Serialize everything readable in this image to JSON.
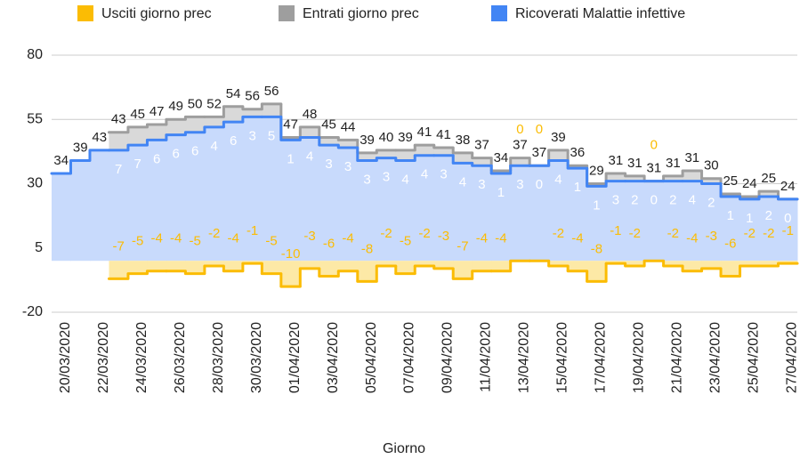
{
  "chart_data": {
    "type": "stepped-area",
    "x_label": "Giorno",
    "categories": [
      "20/03/2020",
      null,
      "22/03/2020",
      null,
      "24/03/2020",
      null,
      "26/03/2020",
      null,
      "28/03/2020",
      null,
      "30/03/2020",
      null,
      "01/04/2020",
      null,
      "03/04/2020",
      null,
      "05/04/2020",
      null,
      "07/04/2020",
      null,
      "09/04/2020",
      null,
      "11/04/2020",
      null,
      "13/04/2020",
      null,
      "15/04/2020",
      null,
      "17/04/2020",
      null,
      "19/04/2020",
      null,
      "21/04/2020",
      null,
      "23/04/2020",
      null,
      "25/04/2020",
      null,
      "27/04/2020"
    ],
    "series": [
      {
        "name": "Usciti giorno prec",
        "color": "#fbbc04",
        "fill": "#fde9a6",
        "values": [
          null,
          null,
          null,
          -7,
          -5,
          -4,
          -4,
          -5,
          -2,
          -4,
          -1,
          -5,
          -10,
          -3,
          -6,
          -4,
          -8,
          -2,
          -5,
          -2,
          -3,
          -7,
          -4,
          -4,
          0,
          0,
          -2,
          -4,
          -8,
          -1,
          -2,
          0,
          -2,
          -4,
          -3,
          -6,
          -2,
          -2,
          -1
        ]
      },
      {
        "name": "Entrati giorno prec",
        "color": "#9e9e9e",
        "fill": "#d9d9d9",
        "values": [
          null,
          null,
          null,
          7,
          7,
          6,
          6,
          6,
          4,
          6,
          3,
          5,
          1,
          4,
          3,
          3,
          3,
          3,
          4,
          4,
          3,
          4,
          3,
          1,
          3,
          0,
          4,
          1,
          1,
          3,
          2,
          0,
          2,
          4,
          2,
          1,
          1,
          2,
          0
        ]
      },
      {
        "name": "Ricoverati Malattie infettive",
        "color": "#4285f4",
        "fill": "#c8dafc",
        "values": [
          34,
          39,
          43,
          43,
          45,
          47,
          49,
          50,
          52,
          54,
          56,
          56,
          47,
          48,
          45,
          44,
          39,
          40,
          39,
          41,
          41,
          38,
          37,
          34,
          37,
          37,
          39,
          36,
          29,
          31,
          31,
          31,
          31,
          31,
          30,
          25,
          24,
          25,
          24
        ]
      }
    ],
    "ylim": [
      -20,
      80
    ],
    "yticks": [
      -20,
      5,
      30,
      55,
      80
    ],
    "grid": true
  }
}
